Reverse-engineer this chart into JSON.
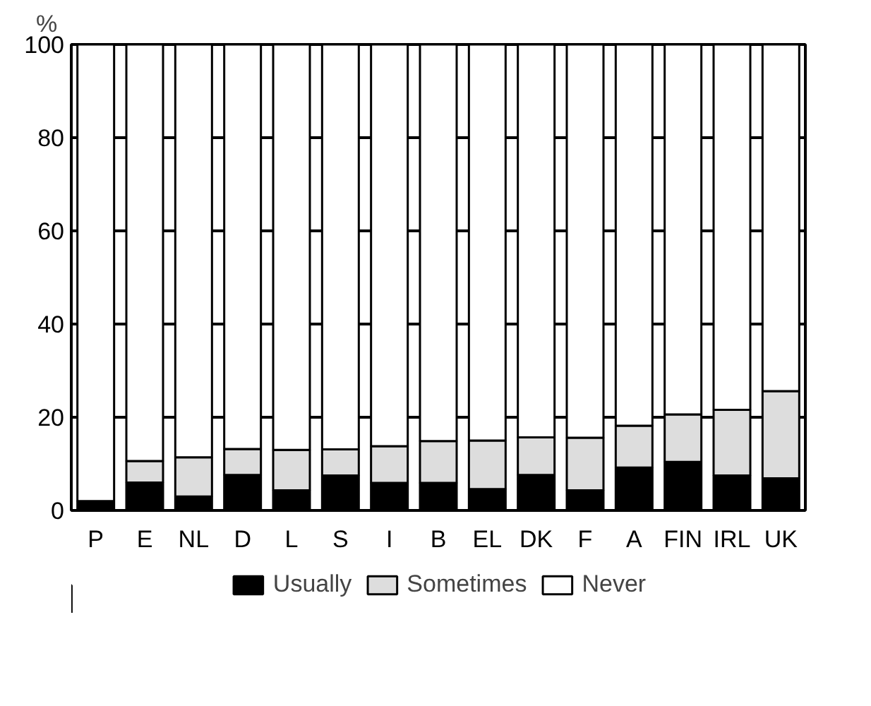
{
  "chart_data": {
    "type": "bar",
    "stacked": true,
    "ylabel": "%",
    "categories": [
      "P",
      "E",
      "NL",
      "D",
      "L",
      "S",
      "I",
      "B",
      "EL",
      "DK",
      "F",
      "A",
      "FIN",
      "IRL",
      "UK"
    ],
    "series": [
      {
        "name": "Usually",
        "color": "#000000",
        "values": [
          2.0,
          6.0,
          3.0,
          7.6,
          4.3,
          7.5,
          5.9,
          5.9,
          4.6,
          7.6,
          4.3,
          9.2,
          10.4,
          7.5,
          6.9
        ]
      },
      {
        "name": "Sometimes",
        "color": "#dddddd",
        "values": [
          0.0,
          4.6,
          8.4,
          5.6,
          8.7,
          5.6,
          7.9,
          9.0,
          10.4,
          8.1,
          11.3,
          9.0,
          10.2,
          14.1,
          18.7
        ]
      },
      {
        "name": "Never",
        "color": "#ffffff",
        "values": [
          98.0,
          89.4,
          88.6,
          86.8,
          87.0,
          86.9,
          86.2,
          85.1,
          85.0,
          84.3,
          84.4,
          81.8,
          79.4,
          78.4,
          74.4
        ]
      }
    ],
    "ylim": [
      0,
      100
    ],
    "yticks": [
      0,
      20,
      40,
      60,
      80,
      100
    ],
    "grid": "y",
    "legend": "bottom"
  }
}
